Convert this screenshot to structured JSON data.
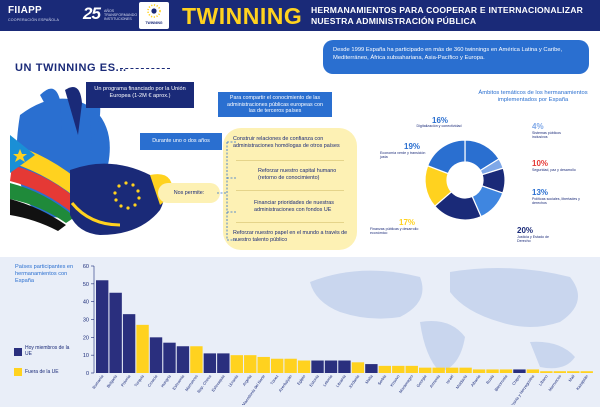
{
  "header": {
    "org_name": "FIIAPP",
    "org_sub": "COOPERACIÓN ESPAÑOLA",
    "anniversary": "25",
    "anniversary_sub": "AÑOS TRANSFORMANDO INSTITUCIONES",
    "partner_logo_text": "TWINNING",
    "title": "TWINNING",
    "subtitle": "HERMANAMIENTOS PARA COOPERAR E INTERNACIONALIZAR NUESTRA ADMINISTRACIÓN PÚBLICA"
  },
  "intro": {
    "section_title": "UN TWINNING ES...",
    "stat_text": "Desde 1999 España ha participado en más de 360 twinnings en América Latina y Caribe, Mediterráneo, África subsahariana, Asia-Pacífico y Europa.",
    "program": "Un programa financiado por la Unión Europea (1-2M € aprox.)",
    "share": "Para compartir el conocimiento de las administraciones públicas europeas con las de terceros países",
    "duration": "Durante uno o dos años",
    "permits_label": "Nos permite:",
    "benefits": [
      "Construir relaciones de confianza con administraciones homólogas de otros países",
      "Reforzar nuestro capital humano (retorno de conocimiento)",
      "Financiar prioridades de nuestras administraciones con fondos UE",
      "Reforzar nuestro papel en el mundo a través de nuestro talento público"
    ]
  },
  "donut": {
    "title": "Ámbitos temáticos de los hermanamientos implementados por España",
    "segments": [
      {
        "pct": "16%",
        "label": "Digitalización y conectividad",
        "value": 16,
        "color": "#2a6fd0"
      },
      {
        "pct": "4%",
        "label": "Sistemas públicos inclusivos",
        "value": 4,
        "color": "#7fa8e8"
      },
      {
        "pct": "10%",
        "label": "Seguridad, paz y desarrollo",
        "value": 10,
        "color": "#1a2a78"
      },
      {
        "pct": "13%",
        "label": "Políticas sociales, libertades y derechos",
        "value": 13,
        "color": "#3f86e0"
      },
      {
        "pct": "20%",
        "label": "Justicia y Estado de Derecho",
        "value": 20,
        "color": "#1a2a78"
      },
      {
        "pct": "17%",
        "label": "Finanzas públicas y desarrollo económico",
        "value": 17,
        "color": "#ffd21f"
      },
      {
        "pct": "19%",
        "label": "Economía verde y transición justa",
        "value": 19,
        "color": "#2a6fd0"
      }
    ]
  },
  "chart_data": {
    "type": "bar",
    "title": "Países participantes en hermanamientos con España",
    "ylim": [
      0,
      60
    ],
    "yticks": [
      0,
      10,
      20,
      30,
      40,
      50,
      60
    ],
    "legend": [
      {
        "name": "Hoy miembros de la UE",
        "color": "#2a2f7e"
      },
      {
        "name": "Fuera de la UE",
        "color": "#ffd21f"
      }
    ],
    "categories": [
      "Rumanía",
      "Bulgaria",
      "Polonia",
      "Turquía",
      "Croacia",
      "Hungría",
      "Eslovenia",
      "Marruecos",
      "Rep. Checa",
      "Eslovaquia",
      "Ucrania",
      "Argelia",
      "Macedonia del Norte",
      "Túnez",
      "Azerbaiyán",
      "Egipto",
      "Estonia",
      "Letonia",
      "Lituania",
      "Jordania",
      "Malta",
      "Serbia",
      "Kosovo",
      "Montenegro",
      "Georgia",
      "Armenia",
      "Israel",
      "Moldavia",
      "Albania",
      "Rusia",
      "Bielorrusia",
      "Chipre",
      "Bosnia y Herzegovina",
      "Líbano",
      "Marruecos",
      "Mali",
      "Kazajstán"
    ],
    "values": [
      52,
      45,
      33,
      27,
      20,
      17,
      15,
      15,
      11,
      11,
      10,
      10,
      9,
      8,
      8,
      7,
      7,
      7,
      7,
      6,
      5,
      4,
      4,
      4,
      3,
      3,
      3,
      3,
      2,
      2,
      2,
      2,
      2,
      1,
      1,
      1,
      1
    ],
    "eu_member": [
      true,
      true,
      true,
      false,
      true,
      true,
      true,
      false,
      true,
      true,
      false,
      false,
      false,
      false,
      false,
      false,
      true,
      true,
      true,
      false,
      true,
      false,
      false,
      false,
      false,
      false,
      false,
      false,
      false,
      false,
      false,
      true,
      false,
      false,
      false,
      false,
      false
    ]
  }
}
